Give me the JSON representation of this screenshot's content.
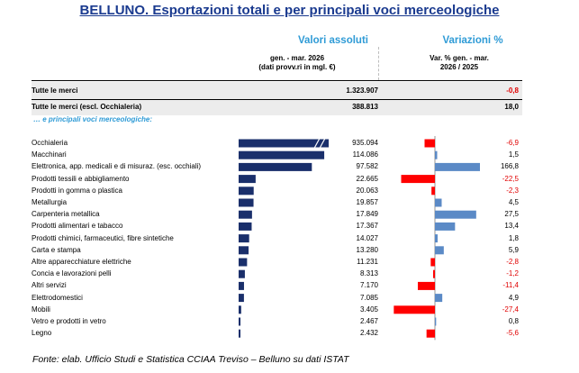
{
  "title": "BELLUNO. Esportazioni totali e per principali voci merceologiche",
  "columns": {
    "absolute_header": "Valori assoluti",
    "variation_header": "Variazioni %",
    "absolute_sub_1": "gen. - mar. 2026",
    "absolute_sub_2": "(dati provv.ri in mgl. €)",
    "variation_sub_1": "Var. % gen. - mar.",
    "variation_sub_2": "2026 / 2025"
  },
  "totals": [
    {
      "label": "Tutte le merci",
      "value": "1.323.907",
      "variation": "-0,8"
    },
    {
      "label": "Tutte le merci (escl. Occhialeria)",
      "value": "388.813",
      "variation": "18,0"
    }
  ],
  "section_label": "… e principali voci merceologiche:",
  "chart_data": {
    "type": "bar",
    "categories": [
      "Occhialeria",
      "Macchinari",
      "Elettronica, app. medicali e di misuraz. (esc. occhiali)",
      "Prodotti tessili e abbigliamento",
      "Prodotti in gomma o plastica",
      "Metallurgia",
      "Carpenteria metallica",
      "Prodotti alimentari e tabacco",
      "Prodotti chimici, farmaceutici, fibre sintetiche",
      "Carta e stampa",
      "Altre apparecchiature elettriche",
      "Concia e lavorazioni pelli",
      "Altri servizi",
      "Elettrodomestici",
      "Mobili",
      "Vetro e prodotti in vetro",
      "Legno"
    ],
    "series": [
      {
        "name": "Valori assoluti",
        "values": [
          935094,
          114086,
          97582,
          22665,
          20063,
          19857,
          17849,
          17367,
          14027,
          13280,
          11231,
          8313,
          7170,
          7085,
          3405,
          2467,
          2432
        ],
        "labels": [
          "935.094",
          "114.086",
          "97.582",
          "22.665",
          "20.063",
          "19.857",
          "17.849",
          "17.367",
          "14.027",
          "13.280",
          "11.231",
          "8.313",
          "7.170",
          "7.085",
          "3.405",
          "2.467",
          "2.432"
        ]
      },
      {
        "name": "Variazioni %",
        "values": [
          -6.9,
          1.5,
          166.8,
          -22.5,
          -2.3,
          4.5,
          27.5,
          13.4,
          1.8,
          5.9,
          -2.8,
          -1.2,
          -11.4,
          4.9,
          -27.4,
          0.8,
          -5.6
        ],
        "labels": [
          "-6,9",
          "1,5",
          "166,8",
          "-22,5",
          "-2,3",
          "4,5",
          "27,5",
          "13,4",
          "1,8",
          "5,9",
          "-2,8",
          "-1,2",
          "-11,4",
          "4,9",
          "-27,4",
          "0,8",
          "-5,6"
        ]
      }
    ],
    "abs_bar_max": 120000,
    "var_display_limit": [
      -30,
      30
    ],
    "colors": {
      "absolute": "#1a2f6b",
      "positive": "#5b8ac6",
      "negative": "#ff0000"
    }
  },
  "footer": "Fonte: elab. Ufficio Studi e Statistica CCIAA Treviso – Belluno su dati ISTAT"
}
